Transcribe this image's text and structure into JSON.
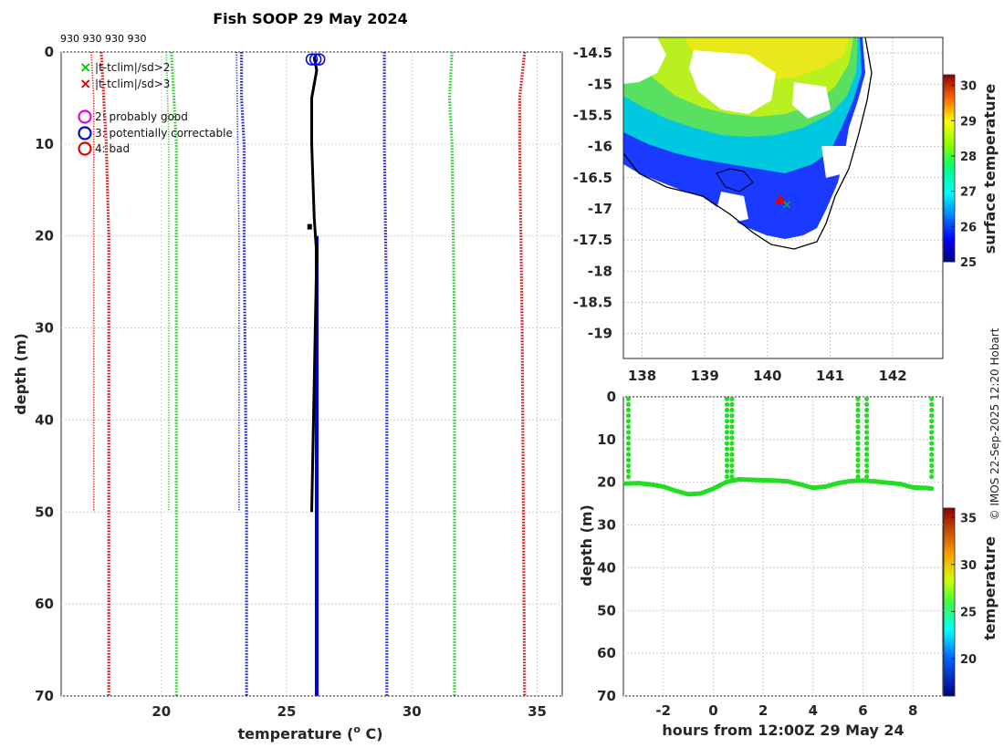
{
  "title": "Fish SOOP 29 May 2024",
  "top_labels": "930 930 930 930",
  "credit": "© IMOS 22-Sep-2025 12:20 Hobart",
  "legend": [
    {
      "symbol": "×",
      "color": "#00cc00",
      "text": "|t-tclim|/sd>2"
    },
    {
      "symbol": "×",
      "color": "#e60000",
      "text": "|t-tclim|/sd>3"
    },
    {
      "symbol": "○",
      "color": "#e600e6",
      "text": "2: probably good"
    },
    {
      "symbol": "○",
      "color": "#0000e6",
      "text": "3: potentially correctable"
    },
    {
      "symbol": "○",
      "color": "#e60000",
      "text": "4: bad"
    }
  ],
  "chart_data": [
    {
      "type": "line",
      "name": "profile",
      "xlabel": "temperature (° C)",
      "xlabel_main": "temperature (",
      "xlabel_sup": "o",
      "xlabel_end": " C)",
      "ylabel": "depth (m)",
      "xlim": [
        16,
        36
      ],
      "ylim": [
        0,
        70
      ],
      "xticks": [
        20,
        25,
        30,
        35
      ],
      "yticks": [
        0,
        10,
        20,
        30,
        40,
        50,
        60,
        70
      ],
      "climatology": [
        {
          "name": "clim-3sd-low",
          "color": "#dd1111",
          "values": [
            [
              0,
              17.6
            ],
            [
              5,
              17.7
            ],
            [
              10,
              17.8
            ],
            [
              20,
              17.9
            ],
            [
              50,
              17.9
            ],
            [
              70,
              17.9
            ]
          ]
        },
        {
          "name": "clim-2sd-low",
          "color": "#33cc33",
          "values": [
            [
              0,
              20.4
            ],
            [
              5,
              20.5
            ],
            [
              10,
              20.6
            ],
            [
              20,
              20.6
            ],
            [
              50,
              20.6
            ],
            [
              70,
              20.6
            ]
          ]
        },
        {
          "name": "clim-1sd-low",
          "color": "#2222dd",
          "values": [
            [
              0,
              23.2
            ],
            [
              5,
              23.2
            ],
            [
              10,
              23.3
            ],
            [
              20,
              23.3
            ],
            [
              50,
              23.4
            ],
            [
              70,
              23.4
            ]
          ]
        },
        {
          "name": "clim-1sd-high",
          "color": "#2222dd",
          "values": [
            [
              0,
              28.9
            ],
            [
              10,
              28.9
            ],
            [
              30,
              29.0
            ],
            [
              70,
              29.0
            ]
          ]
        },
        {
          "name": "clim-2sd-high",
          "color": "#33cc33",
          "values": [
            [
              0,
              31.6
            ],
            [
              5,
              31.5
            ],
            [
              10,
              31.6
            ],
            [
              30,
              31.7
            ],
            [
              70,
              31.7
            ]
          ]
        },
        {
          "name": "clim-3sd-high",
          "color": "#dd1111",
          "values": [
            [
              0,
              34.5
            ],
            [
              5,
              34.3
            ],
            [
              10,
              34.3
            ],
            [
              30,
              34.4
            ],
            [
              70,
              34.5
            ]
          ]
        }
      ],
      "thin_lines": [
        {
          "name": "clim-thin-red",
          "color": "#dd1111",
          "values": [
            [
              0,
              17.2
            ],
            [
              5,
              17.3
            ],
            [
              50,
              17.3
            ]
          ]
        },
        {
          "name": "clim-thin-green",
          "color": "#33cc33",
          "values": [
            [
              0,
              20.2
            ],
            [
              10,
              20.3
            ],
            [
              50,
              20.3
            ]
          ]
        },
        {
          "name": "clim-thin-blue",
          "color": "#2222dd",
          "values": [
            [
              0,
              23.0
            ],
            [
              20,
              23.1
            ],
            [
              50,
              23.1
            ]
          ]
        }
      ],
      "profile_black": [
        [
          0.5,
          26.1
        ],
        [
          2,
          26.2
        ],
        [
          5,
          26.0
        ],
        [
          10,
          26.0
        ],
        [
          18,
          26.1
        ],
        [
          22,
          26.2
        ],
        [
          50,
          26.0
        ]
      ],
      "profile_blue": [
        [
          20,
          26.2
        ],
        [
          70,
          26.2
        ]
      ],
      "flag_circles": [
        [
          0.8,
          26.0
        ],
        [
          0.8,
          26.3
        ],
        [
          0.8,
          26.15
        ]
      ]
    },
    {
      "type": "heatmap",
      "name": "sst-map",
      "cbar_label": "surface temperature",
      "xlim": [
        137.7,
        142.8
      ],
      "ylim": [
        -19.4,
        -14.25
      ],
      "xticks": [
        138,
        139,
        140,
        141,
        142
      ],
      "yticks": [
        -14.5,
        -15,
        -15.5,
        -16,
        -16.5,
        -17,
        -17.5,
        -18,
        -18.5,
        -19
      ],
      "cbar_ticks": [
        25,
        26,
        27,
        28,
        29,
        30
      ],
      "cbar_range": [
        25,
        30.3
      ],
      "marker": {
        "lon": 140.2,
        "lat": -16.85
      }
    },
    {
      "type": "scatter",
      "name": "depth-time",
      "xlabel": "hours from 12:00Z 29 May 24",
      "ylabel": "depth (m)",
      "cbar_label": "temperature",
      "xlim": [
        -3.6,
        9.2
      ],
      "ylim": [
        0,
        70
      ],
      "xticks": [
        -2,
        0,
        2,
        4,
        6,
        8
      ],
      "yticks": [
        0,
        10,
        20,
        30,
        40,
        50,
        60,
        70
      ],
      "cbar_ticks": [
        20,
        25,
        30,
        35
      ],
      "cbar_range": [
        16,
        36
      ],
      "bottom_track": [
        [
          -3.5,
          20.3
        ],
        [
          -3.0,
          20.2
        ],
        [
          -2.5,
          20.5
        ],
        [
          -2.0,
          21.0
        ],
        [
          -1.5,
          22.0
        ],
        [
          -1.0,
          22.8
        ],
        [
          -0.5,
          22.6
        ],
        [
          0.0,
          21.5
        ],
        [
          0.5,
          20.0
        ],
        [
          1.0,
          19.3
        ],
        [
          1.5,
          19.4
        ],
        [
          2.0,
          19.5
        ],
        [
          2.5,
          19.6
        ],
        [
          3.0,
          19.8
        ],
        [
          3.5,
          20.5
        ],
        [
          4.0,
          21.3
        ],
        [
          4.5,
          21.0
        ],
        [
          5.0,
          20.2
        ],
        [
          5.5,
          19.7
        ],
        [
          6.0,
          19.6
        ],
        [
          6.5,
          19.8
        ],
        [
          7.0,
          20.1
        ],
        [
          7.5,
          20.4
        ],
        [
          8.0,
          21.2
        ],
        [
          8.5,
          21.3
        ],
        [
          8.8,
          21.5
        ]
      ],
      "casts": [
        -3.4,
        0.55,
        0.75,
        5.8,
        6.15,
        8.75
      ]
    }
  ]
}
